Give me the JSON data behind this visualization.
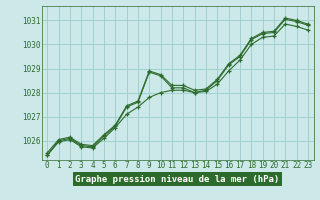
{
  "title": "Graphe pression niveau de la mer (hPa)",
  "bg_color": "#cce8e8",
  "grid_color": "#99cccc",
  "line_color": "#2d6b2d",
  "xlim": [
    -0.5,
    23.5
  ],
  "ylim": [
    1025.2,
    1031.6
  ],
  "xticks": [
    0,
    1,
    2,
    3,
    4,
    5,
    6,
    7,
    8,
    9,
    10,
    11,
    12,
    13,
    14,
    15,
    16,
    17,
    18,
    19,
    20,
    21,
    22,
    23
  ],
  "yticks": [
    1026,
    1027,
    1028,
    1029,
    1030,
    1031
  ],
  "series_jagged": [
    1025.4,
    1026.0,
    1026.1,
    1025.8,
    1025.75,
    1026.2,
    1026.6,
    1027.4,
    1027.6,
    1028.85,
    1028.7,
    1028.2,
    1028.2,
    1028.0,
    1028.1,
    1028.5,
    1029.15,
    1029.5,
    1030.2,
    1030.45,
    1030.5,
    1031.05,
    1030.95,
    1030.8
  ],
  "series_smooth_low": [
    1025.4,
    1025.95,
    1026.05,
    1025.75,
    1025.7,
    1026.1,
    1026.55,
    1027.1,
    1027.4,
    1027.8,
    1028.0,
    1028.1,
    1028.1,
    1028.0,
    1028.05,
    1028.35,
    1028.9,
    1029.35,
    1030.0,
    1030.3,
    1030.35,
    1030.85,
    1030.75,
    1030.6
  ],
  "series_smooth_high": [
    1025.5,
    1026.05,
    1026.15,
    1025.85,
    1025.8,
    1026.25,
    1026.65,
    1027.45,
    1027.65,
    1028.9,
    1028.75,
    1028.3,
    1028.3,
    1028.1,
    1028.15,
    1028.55,
    1029.2,
    1029.55,
    1030.25,
    1030.5,
    1030.55,
    1031.1,
    1031.0,
    1030.85
  ],
  "title_bg": "#2d6b2d",
  "title_fg": "#ffffff",
  "title_fontsize": 6.5,
  "tick_fontsize": 5.5
}
